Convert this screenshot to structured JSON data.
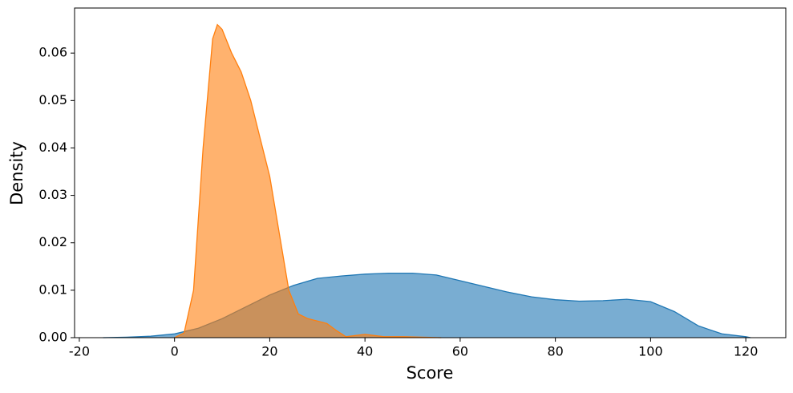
{
  "chart_data": {
    "type": "area",
    "xlabel": "Score",
    "ylabel": "Density",
    "xlim": [
      -21.0,
      128.4
    ],
    "ylim": [
      0,
      0.0695
    ],
    "xticks": [
      -20,
      0,
      20,
      40,
      60,
      80,
      100,
      120
    ],
    "yticks": [
      {
        "value": 0,
        "label": "0.00"
      },
      {
        "value": 0.01,
        "label": "0.01"
      },
      {
        "value": 0.02,
        "label": "0.02"
      },
      {
        "value": 0.03,
        "label": "0.03"
      },
      {
        "value": 0.04,
        "label": "0.04"
      },
      {
        "value": 0.05,
        "label": "0.05"
      },
      {
        "value": 0.06,
        "label": "0.06"
      }
    ],
    "grid": false,
    "series": [
      {
        "color": "#1f77b4",
        "x": [
          -15,
          -10,
          -5,
          0,
          5,
          10,
          15,
          20,
          25,
          30,
          35,
          40,
          45,
          50,
          55,
          60,
          65,
          70,
          75,
          80,
          85,
          90,
          95,
          100,
          105,
          110,
          115,
          120,
          121
        ],
        "values": [
          0,
          0.0001,
          0.0003,
          0.0008,
          0.002,
          0.004,
          0.0065,
          0.009,
          0.011,
          0.0125,
          0.013,
          0.0134,
          0.0136,
          0.0136,
          0.0132,
          0.012,
          0.0108,
          0.0096,
          0.0086,
          0.008,
          0.0077,
          0.0078,
          0.0081,
          0.0076,
          0.0055,
          0.0025,
          0.0008,
          0.0002,
          0
        ]
      },
      {
        "color": "#ff7f0e",
        "x": [
          0,
          2,
          4,
          6,
          8,
          9,
          10,
          12,
          14,
          16,
          18,
          20,
          22,
          24,
          26,
          28,
          30,
          32,
          34,
          36,
          40,
          44,
          48,
          52,
          56
        ],
        "values": [
          0,
          0.001,
          0.01,
          0.04,
          0.063,
          0.066,
          0.065,
          0.06,
          0.056,
          0.05,
          0.042,
          0.034,
          0.022,
          0.01,
          0.005,
          0.004,
          0.0035,
          0.003,
          0.0015,
          0.0002,
          0.0007,
          0.0002,
          0.0002,
          0.0001,
          0
        ]
      }
    ]
  }
}
